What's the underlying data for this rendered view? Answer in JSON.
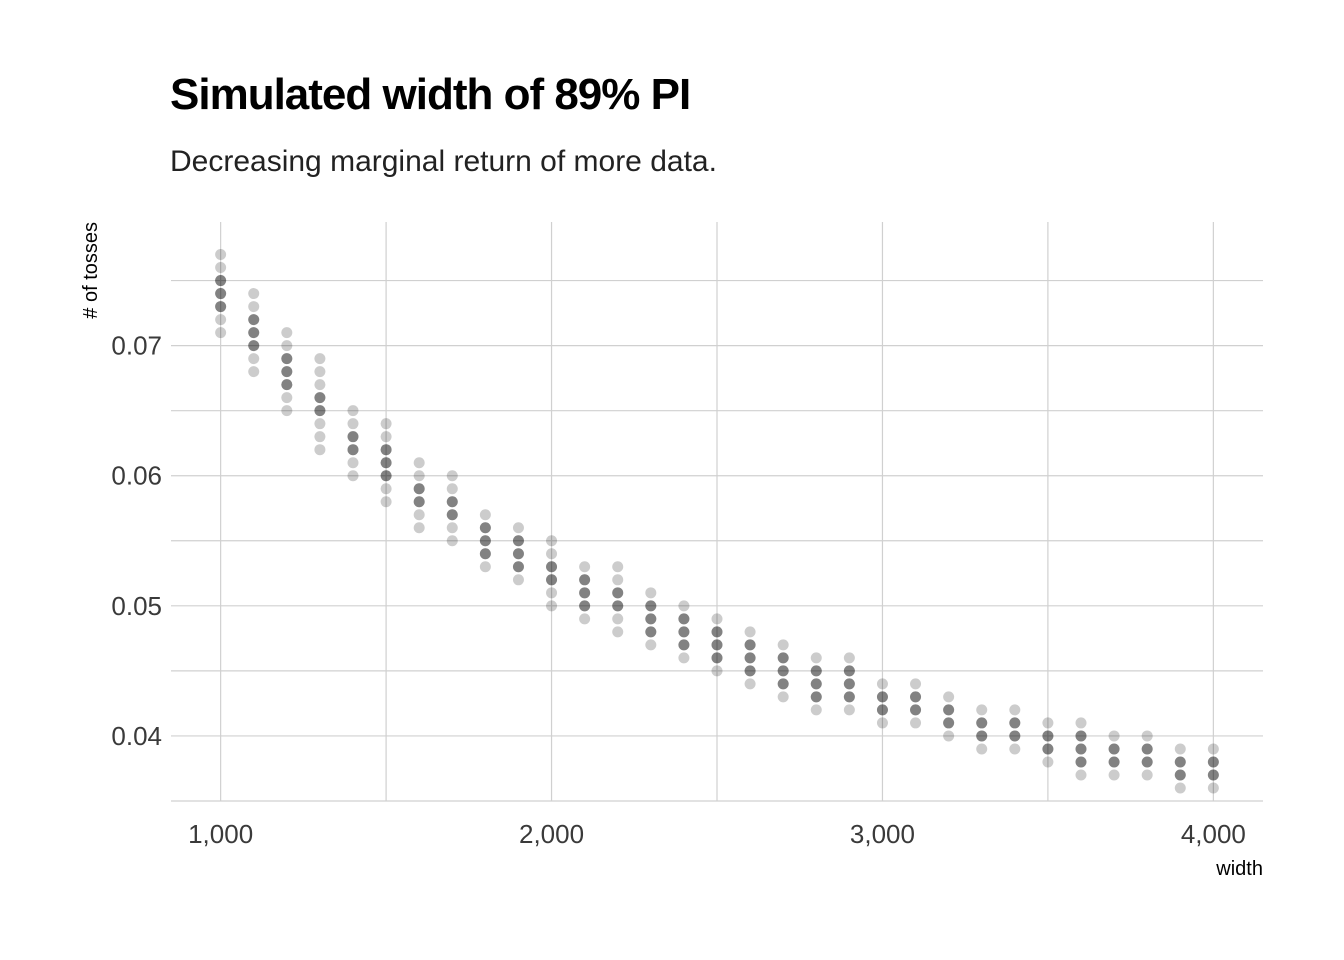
{
  "chart_data": {
    "type": "scatter",
    "title": "Simulated width of 89% PI",
    "subtitle": "Decreasing marginal return of more data.",
    "xlabel": "width",
    "ylabel": "# of tosses",
    "xlim": [
      850,
      4150
    ],
    "ylim": [
      0.035,
      0.0795
    ],
    "xticks": [
      1000,
      2000,
      3000,
      4000
    ],
    "xtick_labels": [
      "1,000",
      "2,000",
      "3,000",
      "4,000"
    ],
    "yticks": [
      0.04,
      0.05,
      0.06,
      0.07
    ],
    "ytick_labels": [
      "0.04",
      "0.05",
      "0.06",
      "0.07"
    ],
    "grid": true,
    "point_color": "#000000",
    "point_alpha": 0.2,
    "columns": [
      {
        "x": 1000,
        "y": [
          0.071,
          0.072,
          0.073,
          0.074,
          0.075,
          0.076,
          0.077
        ]
      },
      {
        "x": 1100,
        "y": [
          0.068,
          0.069,
          0.07,
          0.071,
          0.072,
          0.073,
          0.074
        ]
      },
      {
        "x": 1200,
        "y": [
          0.065,
          0.066,
          0.067,
          0.068,
          0.069,
          0.07,
          0.071
        ]
      },
      {
        "x": 1300,
        "y": [
          0.062,
          0.063,
          0.064,
          0.065,
          0.066,
          0.067,
          0.068,
          0.069
        ]
      },
      {
        "x": 1400,
        "y": [
          0.06,
          0.061,
          0.062,
          0.063,
          0.064,
          0.065
        ]
      },
      {
        "x": 1500,
        "y": [
          0.058,
          0.059,
          0.06,
          0.061,
          0.062,
          0.063,
          0.064
        ]
      },
      {
        "x": 1600,
        "y": [
          0.056,
          0.057,
          0.058,
          0.059,
          0.06,
          0.061
        ]
      },
      {
        "x": 1700,
        "y": [
          0.055,
          0.056,
          0.057,
          0.058,
          0.059,
          0.06
        ]
      },
      {
        "x": 1800,
        "y": [
          0.053,
          0.054,
          0.055,
          0.056,
          0.057
        ]
      },
      {
        "x": 1900,
        "y": [
          0.052,
          0.053,
          0.054,
          0.055,
          0.056
        ]
      },
      {
        "x": 2000,
        "y": [
          0.05,
          0.051,
          0.052,
          0.053,
          0.054,
          0.055
        ]
      },
      {
        "x": 2100,
        "y": [
          0.049,
          0.05,
          0.051,
          0.052,
          0.053
        ]
      },
      {
        "x": 2200,
        "y": [
          0.048,
          0.049,
          0.05,
          0.051,
          0.052,
          0.053
        ]
      },
      {
        "x": 2300,
        "y": [
          0.047,
          0.048,
          0.049,
          0.05,
          0.051
        ]
      },
      {
        "x": 2400,
        "y": [
          0.046,
          0.047,
          0.048,
          0.049,
          0.05
        ]
      },
      {
        "x": 2500,
        "y": [
          0.045,
          0.046,
          0.047,
          0.048,
          0.049
        ]
      },
      {
        "x": 2600,
        "y": [
          0.044,
          0.045,
          0.046,
          0.047,
          0.048
        ]
      },
      {
        "x": 2700,
        "y": [
          0.043,
          0.044,
          0.045,
          0.046,
          0.047
        ]
      },
      {
        "x": 2800,
        "y": [
          0.042,
          0.043,
          0.044,
          0.045,
          0.046
        ]
      },
      {
        "x": 2900,
        "y": [
          0.042,
          0.043,
          0.044,
          0.045,
          0.046
        ]
      },
      {
        "x": 3000,
        "y": [
          0.041,
          0.042,
          0.043,
          0.044
        ]
      },
      {
        "x": 3100,
        "y": [
          0.041,
          0.042,
          0.043,
          0.044
        ]
      },
      {
        "x": 3200,
        "y": [
          0.04,
          0.041,
          0.042,
          0.043
        ]
      },
      {
        "x": 3300,
        "y": [
          0.039,
          0.04,
          0.041,
          0.042
        ]
      },
      {
        "x": 3400,
        "y": [
          0.039,
          0.04,
          0.041,
          0.042
        ]
      },
      {
        "x": 3500,
        "y": [
          0.038,
          0.039,
          0.04,
          0.041
        ]
      },
      {
        "x": 3600,
        "y": [
          0.037,
          0.038,
          0.039,
          0.04,
          0.041
        ]
      },
      {
        "x": 3700,
        "y": [
          0.037,
          0.038,
          0.039,
          0.04
        ]
      },
      {
        "x": 3800,
        "y": [
          0.037,
          0.038,
          0.039,
          0.04
        ]
      },
      {
        "x": 3900,
        "y": [
          0.036,
          0.037,
          0.038,
          0.039
        ]
      },
      {
        "x": 4000,
        "y": [
          0.036,
          0.037,
          0.038,
          0.039
        ]
      }
    ]
  }
}
